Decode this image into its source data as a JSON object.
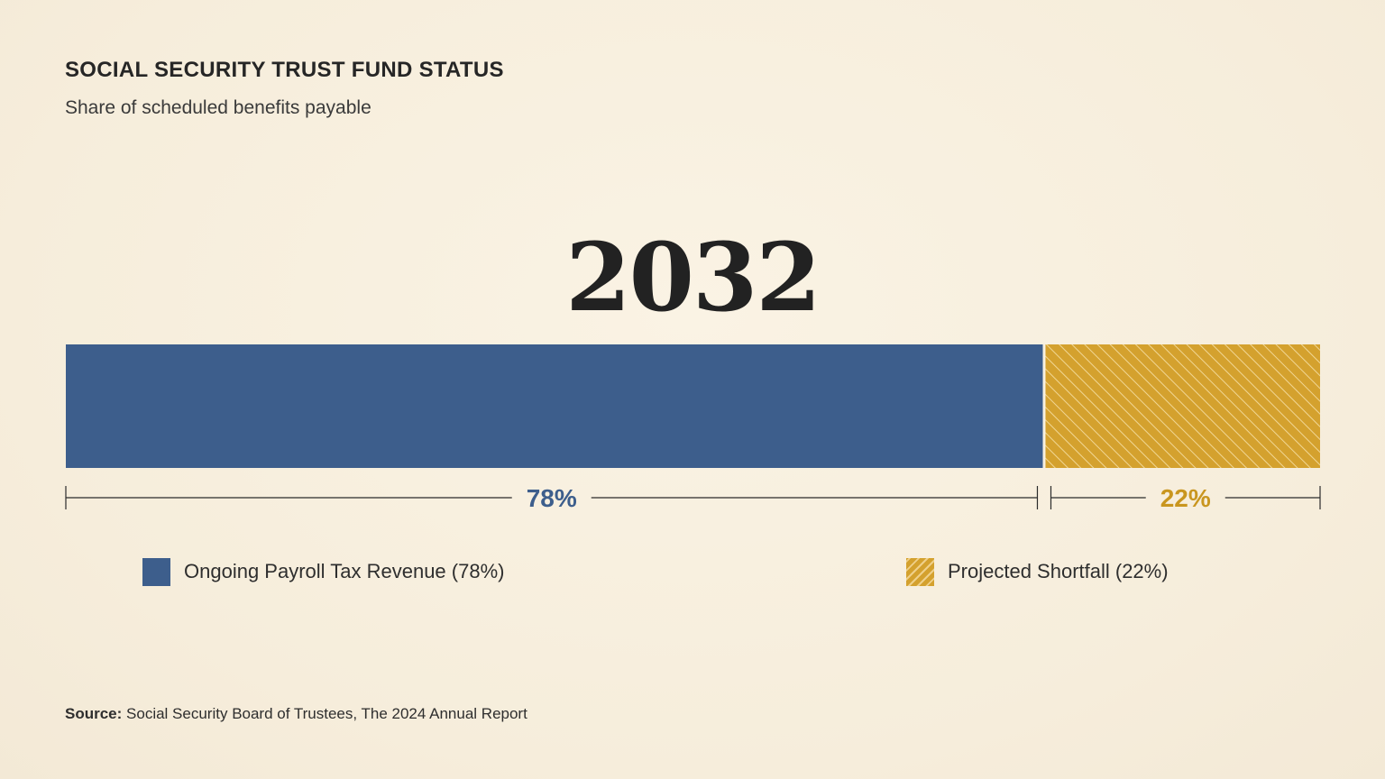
{
  "title": "SOCIAL SECURITY TRUST FUND STATUS",
  "subtitle": "Share of scheduled benefits payable",
  "chart_data": {
    "type": "bar",
    "orientation": "horizontal-stacked",
    "year_label": "2032",
    "segments": [
      {
        "name": "Ongoing Payroll Tax Revenue (78%)",
        "value": 78,
        "value_label": "78%",
        "color": "#3d5e8c",
        "pattern": "solid"
      },
      {
        "name": "Projected Shortfall (22%)",
        "value": 22,
        "value_label": "22%",
        "color": "#d4a12e",
        "pattern": "hatched"
      }
    ],
    "total": 100,
    "legend_position": "bottom"
  },
  "source": {
    "prefix": "Source:",
    "text": "Social Security Board of Trustees, The 2024 Annual Report"
  },
  "colors": {
    "background": "#f8f0e0",
    "text": "#262626",
    "blue": "#3d5e8c",
    "gold": "#d4a12e",
    "gold_label": "#c9961f"
  }
}
